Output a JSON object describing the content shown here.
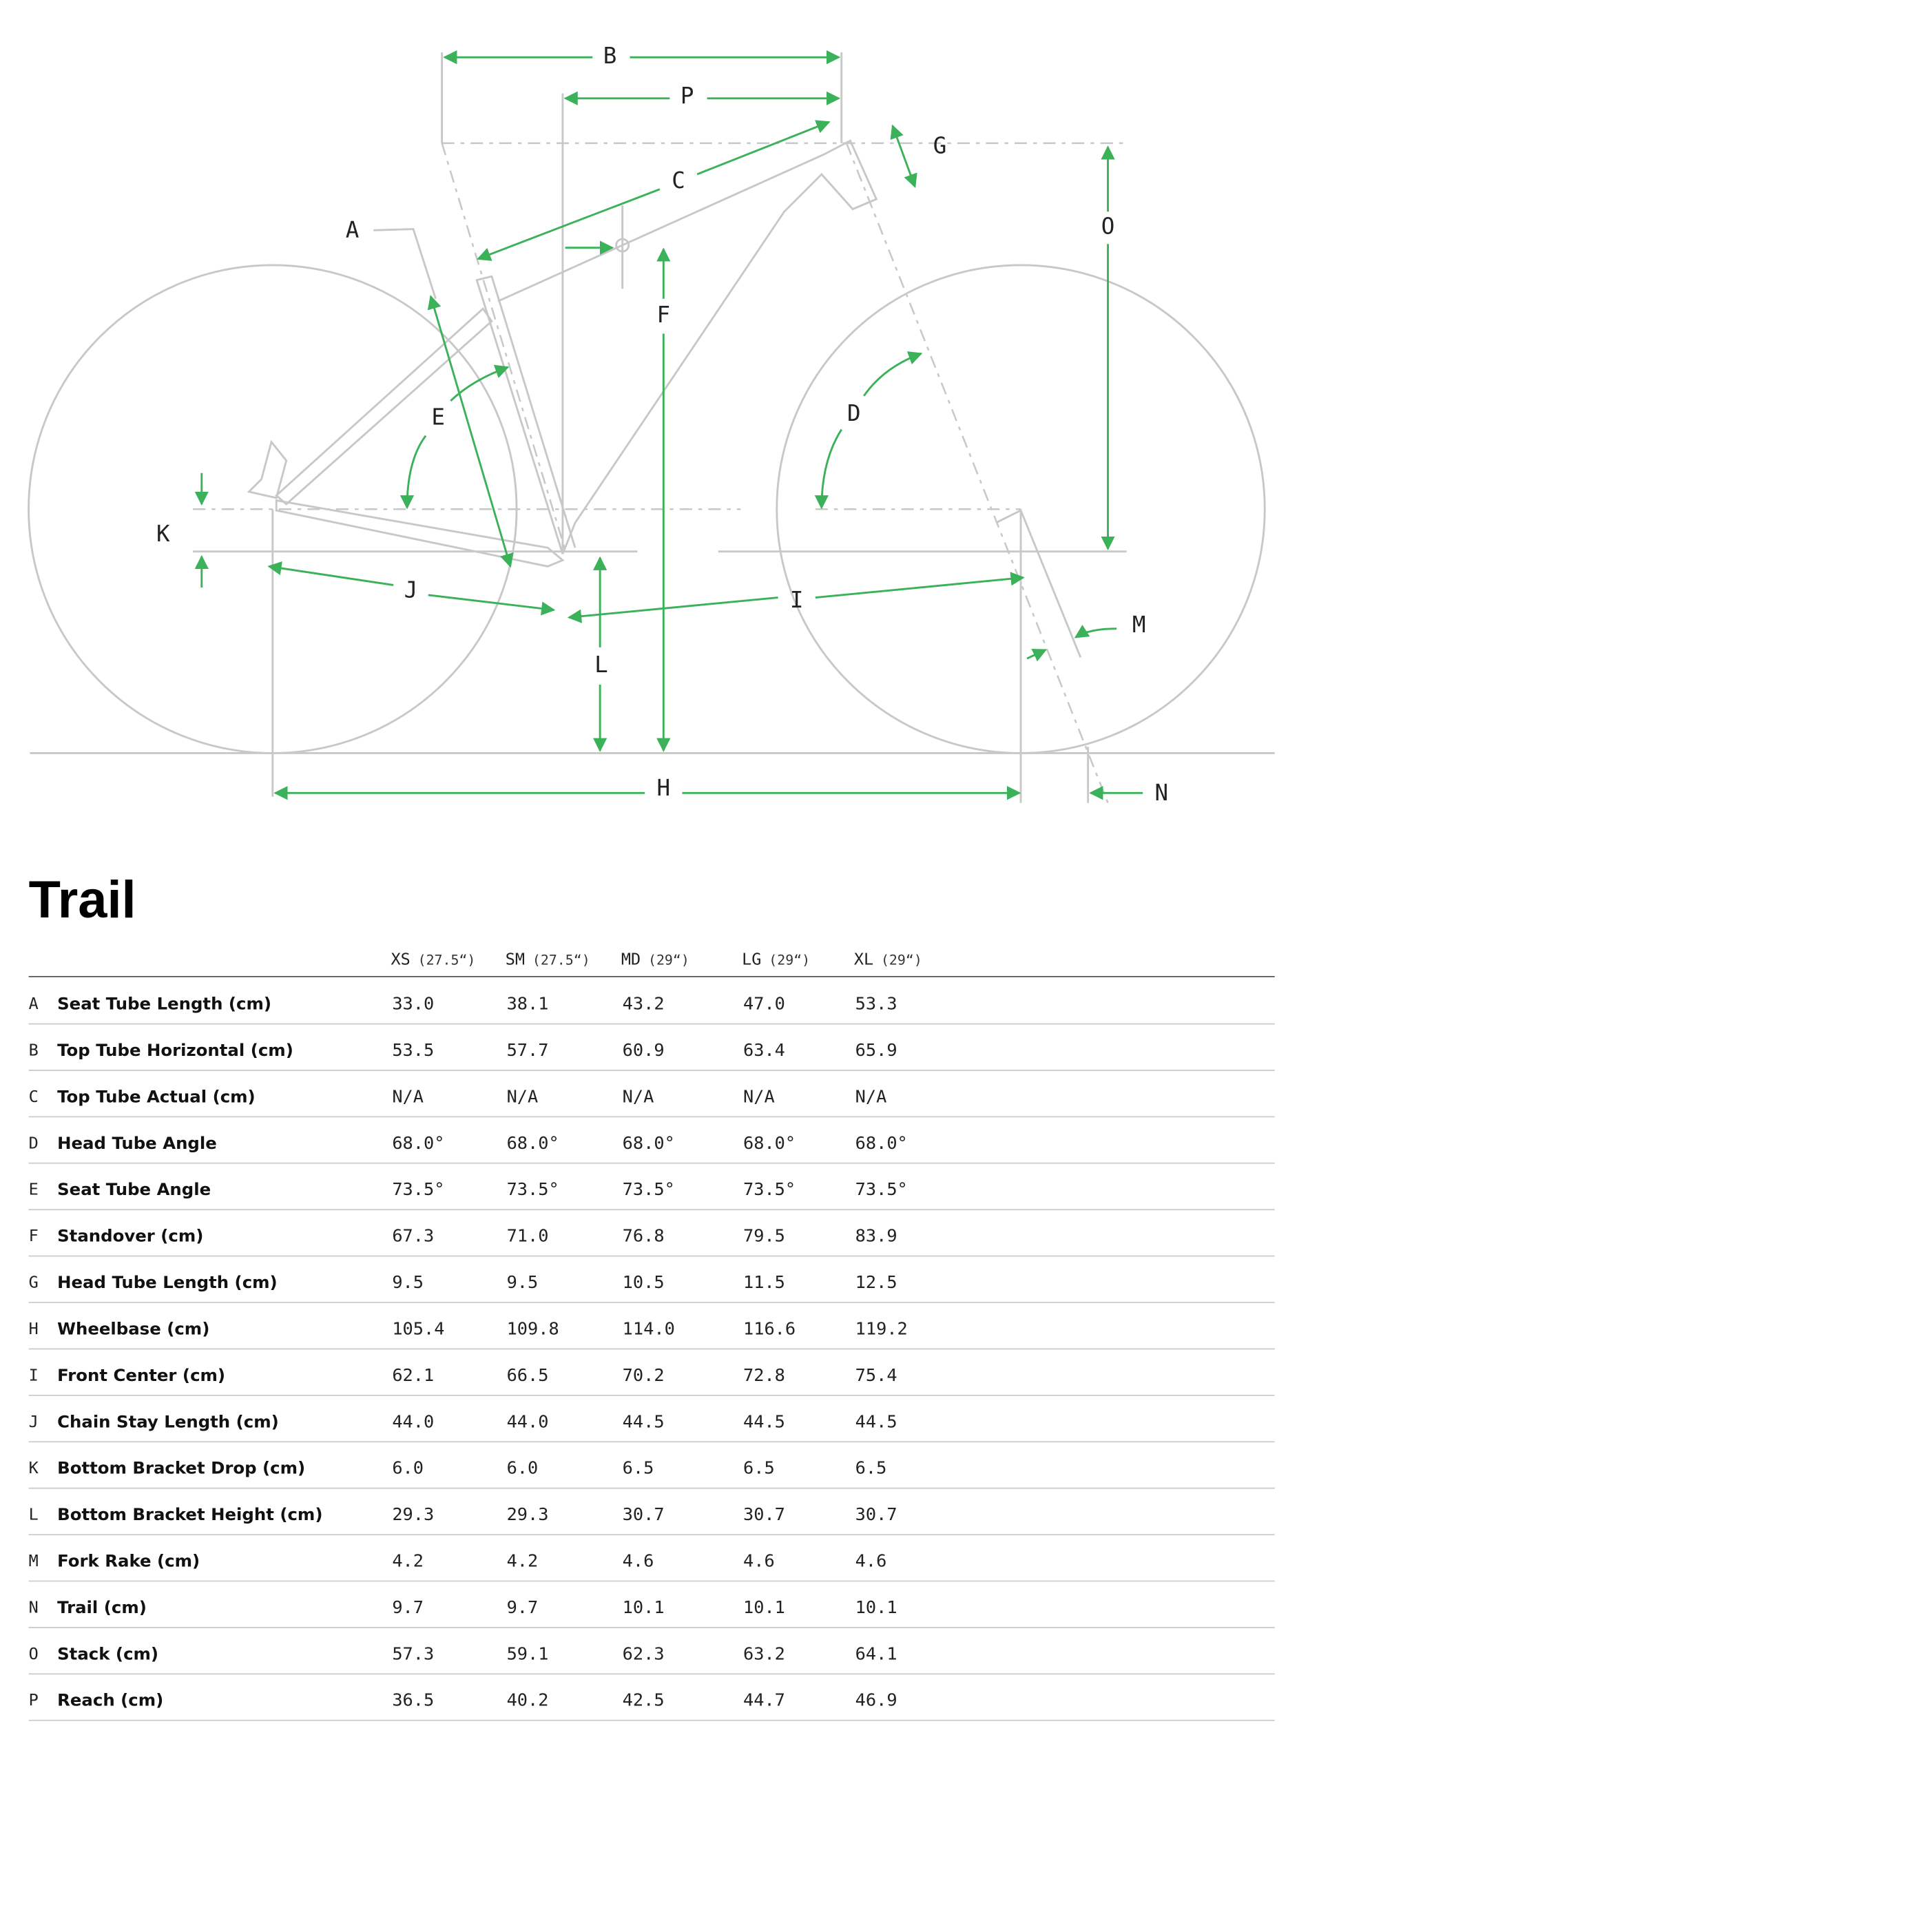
{
  "title": "Trail",
  "table": {
    "columns": [
      {
        "size": "XS",
        "wheel": "(27.5“)"
      },
      {
        "size": "SM",
        "wheel": "(27.5“)"
      },
      {
        "size": "MD",
        "wheel": "(29“)"
      },
      {
        "size": "LG",
        "wheel": "(29“)"
      },
      {
        "size": "XL",
        "wheel": "(29“)"
      }
    ],
    "rows": [
      {
        "letter": "A",
        "name": "Seat Tube Length (cm)",
        "values": [
          "33.0",
          "38.1",
          "43.2",
          "47.0",
          "53.3"
        ]
      },
      {
        "letter": "B",
        "name": "Top Tube Horizontal (cm)",
        "values": [
          "53.5",
          "57.7",
          "60.9",
          "63.4",
          "65.9"
        ]
      },
      {
        "letter": "C",
        "name": "Top Tube Actual (cm)",
        "values": [
          "N/A",
          "N/A",
          "N/A",
          "N/A",
          "N/A"
        ]
      },
      {
        "letter": "D",
        "name": "Head Tube Angle",
        "values": [
          "68.0°",
          "68.0°",
          "68.0°",
          "68.0°",
          "68.0°"
        ]
      },
      {
        "letter": "E",
        "name": "Seat Tube Angle",
        "values": [
          "73.5°",
          "73.5°",
          "73.5°",
          "73.5°",
          "73.5°"
        ]
      },
      {
        "letter": "F",
        "name": "Standover (cm)",
        "values": [
          "67.3",
          "71.0",
          "76.8",
          "79.5",
          "83.9"
        ]
      },
      {
        "letter": "G",
        "name": "Head Tube Length (cm)",
        "values": [
          "9.5",
          "9.5",
          "10.5",
          "11.5",
          "12.5"
        ]
      },
      {
        "letter": "H",
        "name": "Wheelbase (cm)",
        "values": [
          "105.4",
          "109.8",
          "114.0",
          "116.6",
          "119.2"
        ]
      },
      {
        "letter": "I",
        "name": "Front Center (cm)",
        "values": [
          "62.1",
          "66.5",
          "70.2",
          "72.8",
          "75.4"
        ]
      },
      {
        "letter": "J",
        "name": "Chain Stay Length (cm)",
        "values": [
          "44.0",
          "44.0",
          "44.5",
          "44.5",
          "44.5"
        ]
      },
      {
        "letter": "K",
        "name": "Bottom Bracket Drop (cm)",
        "values": [
          "6.0",
          "6.0",
          "6.5",
          "6.5",
          "6.5"
        ]
      },
      {
        "letter": "L",
        "name": "Bottom Bracket Height (cm)",
        "values": [
          "29.3",
          "29.3",
          "30.7",
          "30.7",
          "30.7"
        ]
      },
      {
        "letter": "M",
        "name": "Fork Rake (cm)",
        "values": [
          "4.2",
          "4.2",
          "4.6",
          "4.6",
          "4.6"
        ]
      },
      {
        "letter": "N",
        "name": "Trail (cm)",
        "values": [
          "9.7",
          "9.7",
          "10.1",
          "10.1",
          "10.1"
        ]
      },
      {
        "letter": "O",
        "name": "Stack (cm)",
        "values": [
          "57.3",
          "59.1",
          "62.3",
          "63.2",
          "64.1"
        ]
      },
      {
        "letter": "P",
        "name": "Reach (cm)",
        "values": [
          "36.5",
          "40.2",
          "42.5",
          "44.7",
          "46.9"
        ]
      }
    ]
  }
}
